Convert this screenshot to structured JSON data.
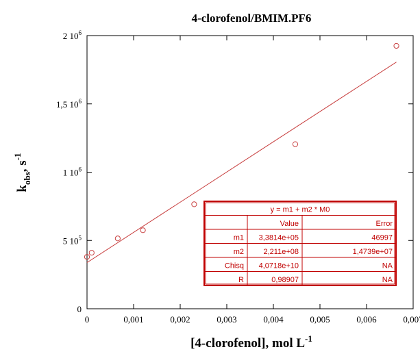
{
  "chart_data": {
    "type": "scatter",
    "title": "4-clorofenol/BMIM.PF6",
    "xlabel": {
      "main": "[4-clorofenol], mol L",
      "sup": "-1"
    },
    "ylabel": {
      "main": "k",
      "sub": "obs",
      "mid": ", s",
      "sup": "-1"
    },
    "xlim": [
      0,
      0.007
    ],
    "ylim": [
      0,
      2000000
    ],
    "x_ticks": [
      {
        "value": 0,
        "label": "0"
      },
      {
        "value": 0.001,
        "label": "0,001"
      },
      {
        "value": 0.002,
        "label": "0,002"
      },
      {
        "value": 0.003,
        "label": "0,003"
      },
      {
        "value": 0.004,
        "label": "0,004"
      },
      {
        "value": 0.005,
        "label": "0,005"
      },
      {
        "value": 0.006,
        "label": "0,006"
      },
      {
        "value": 0.007,
        "label": "0,007"
      }
    ],
    "y_ticks": [
      {
        "value": 0,
        "base": "0",
        "exp": ""
      },
      {
        "value": 500000,
        "base": "5 10",
        "exp": "5"
      },
      {
        "value": 1000000,
        "base": "1 10",
        "exp": "6"
      },
      {
        "value": 1500000,
        "base": "1,5 10",
        "exp": "6"
      },
      {
        "value": 2000000,
        "base": "2 10",
        "exp": "6"
      }
    ],
    "points": [
      {
        "x": 0.0,
        "y": 380000
      },
      {
        "x": 0.0001,
        "y": 410000
      },
      {
        "x": 0.00066,
        "y": 515000
      },
      {
        "x": 0.0012,
        "y": 575000
      },
      {
        "x": 0.0023,
        "y": 765000
      },
      {
        "x": 0.00447,
        "y": 1205000
      },
      {
        "x": 0.00664,
        "y": 1925000
      }
    ],
    "fit": {
      "intercept": 338140,
      "slope": 221100000,
      "x_range": [
        0,
        0.00664
      ]
    },
    "colors": {
      "points": "#c84040",
      "fit_line": "#c84040",
      "frame": "#000000",
      "stats": "#c00000"
    },
    "stats_table": {
      "equation": "y = m1 + m2 * M0",
      "header": [
        "",
        "Value",
        "Error"
      ],
      "rows": [
        [
          "m1",
          "3,3814e+05",
          "46997"
        ],
        [
          "m2",
          "2,211e+08",
          "1,4739e+07"
        ],
        [
          "Chisq",
          "4,0718e+10",
          "NA"
        ],
        [
          "R",
          "0,98907",
          "NA"
        ]
      ]
    }
  }
}
